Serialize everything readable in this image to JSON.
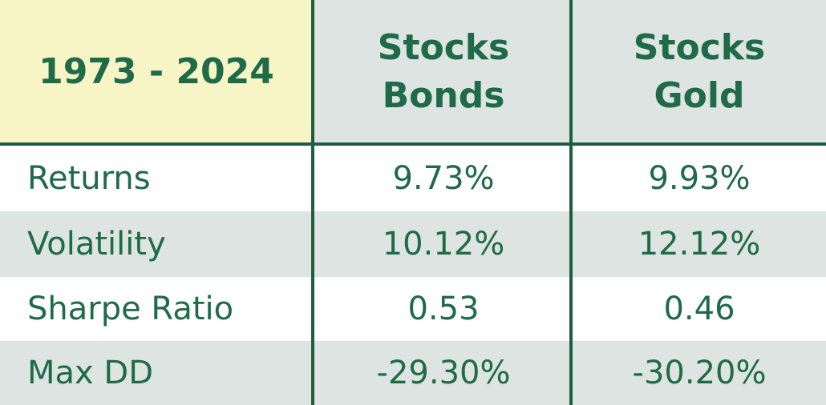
{
  "table": {
    "corner": "1973 - 2024",
    "columns": [
      [
        "Stocks",
        "Bonds"
      ],
      [
        "Stocks",
        "Gold"
      ]
    ],
    "rows": [
      [
        "Returns",
        "9.73%",
        "9.93%"
      ],
      [
        "Volatility",
        "10.12%",
        "12.12%"
      ],
      [
        "Sharpe Ratio",
        "0.53",
        "0.46"
      ],
      [
        "Max DD",
        "-29.30%",
        "-30.20%"
      ]
    ]
  }
}
